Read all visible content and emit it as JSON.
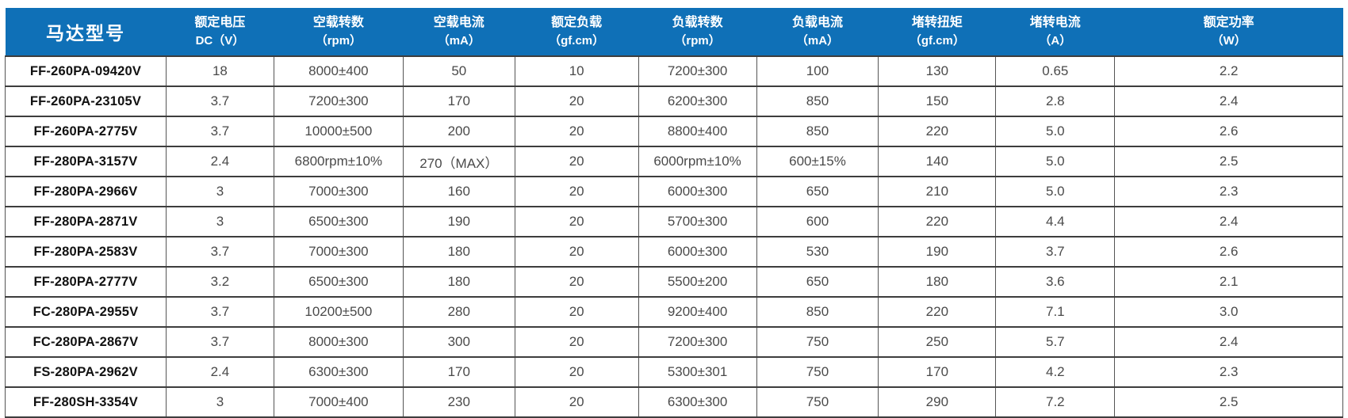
{
  "colors": {
    "header_bg": "#0f70b7",
    "header_text": "#ffffff",
    "body_text": "#4a4a4a",
    "model_text": "#111111",
    "grid_line": "#3d3d3d"
  },
  "table": {
    "columns": [
      {
        "line1": "马达型号",
        "line2": ""
      },
      {
        "line1": "额定电压",
        "line2": "DC（V）"
      },
      {
        "line1": "空载转数",
        "line2": "（rpm）"
      },
      {
        "line1": "空载电流",
        "line2": "（mA）"
      },
      {
        "line1": "额定负载",
        "line2": "（gf.cm）"
      },
      {
        "line1": "负载转数",
        "line2": "（rpm）"
      },
      {
        "line1": "负载电流",
        "line2": "（mA）"
      },
      {
        "line1": "堵转扭矩",
        "line2": "（gf.cm）"
      },
      {
        "line1": "堵转电流",
        "line2": "（A）"
      },
      {
        "line1": "额定功率",
        "line2": "（W）"
      }
    ],
    "col_widths_pct": [
      12.03,
      8.06,
      9.66,
      8.35,
      9.24,
      8.83,
      9.12,
      8.77,
      8.89,
      17.05
    ],
    "rows": [
      [
        "FF-260PA-09420V",
        "18",
        "8000±400",
        "50",
        "10",
        "7200±300",
        "100",
        "130",
        "0.65",
        "2.2"
      ],
      [
        "FF-260PA-23105V",
        "3.7",
        "7200±300",
        "170",
        "20",
        "6200±300",
        "850",
        "150",
        "2.8",
        "2.4"
      ],
      [
        "FF-260PA-2775V",
        "3.7",
        "10000±500",
        "200",
        "20",
        "8800±400",
        "850",
        "220",
        "5.0",
        "2.6"
      ],
      [
        "FF-280PA-3157V",
        "2.4",
        "6800rpm±10%",
        "270（MAX）",
        "20",
        "6000rpm±10%",
        "600±15%",
        "140",
        "5.0",
        "2.5"
      ],
      [
        "FF-280PA-2966V",
        "3",
        "7000±300",
        "160",
        "20",
        "6000±300",
        "650",
        "210",
        "5.0",
        "2.3"
      ],
      [
        "FF-280PA-2871V",
        "3",
        "6500±300",
        "190",
        "20",
        "5700±300",
        "600",
        "220",
        "4.4",
        "2.4"
      ],
      [
        "FF-280PA-2583V",
        "3.7",
        "7000±300",
        "180",
        "20",
        "6000±300",
        "530",
        "190",
        "3.7",
        "2.6"
      ],
      [
        "FF-280PA-2777V",
        "3.2",
        "6500±300",
        "180",
        "20",
        "5500±200",
        "650",
        "180",
        "3.6",
        "2.1"
      ],
      [
        "FC-280PA-2955V",
        "3.7",
        "10200±500",
        "280",
        "20",
        "9200±400",
        "850",
        "220",
        "7.1",
        "3.0"
      ],
      [
        "FC-280PA-2867V",
        "3.7",
        "8000±300",
        "300",
        "20",
        "7200±300",
        "750",
        "250",
        "5.7",
        "2.4"
      ],
      [
        "FS-280PA-2962V",
        "2.4",
        "6300±300",
        "170",
        "20",
        "5300±301",
        "750",
        "170",
        "4.2",
        "2.3"
      ],
      [
        "FF-280SH-3354V",
        "3",
        "7000±400",
        "230",
        "20",
        "6300±300",
        "750",
        "290",
        "7.2",
        "2.5"
      ]
    ]
  }
}
